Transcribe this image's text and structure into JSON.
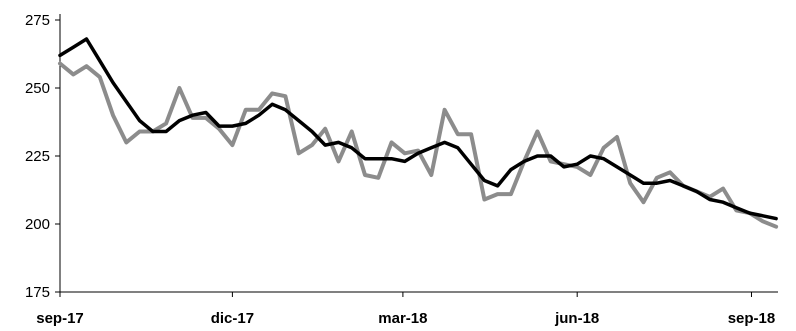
{
  "chart_data": {
    "type": "line",
    "title": "",
    "xlabel": "",
    "ylabel": "",
    "ylim": [
      175,
      275
    ],
    "yticks": [
      175,
      200,
      225,
      250,
      275
    ],
    "xticks": [
      "sep-17",
      "dic-17",
      "mar-18",
      "jun-18",
      "sep-18"
    ],
    "grid": false,
    "legend": "none",
    "x": [
      "2017-09-01",
      "2017-09-08",
      "2017-09-15",
      "2017-09-22",
      "2017-09-29",
      "2017-10-06",
      "2017-10-13",
      "2017-10-20",
      "2017-10-27",
      "2017-11-03",
      "2017-11-10",
      "2017-11-17",
      "2017-11-24",
      "2017-12-01",
      "2017-12-08",
      "2017-12-15",
      "2017-12-22",
      "2017-12-29",
      "2018-01-05",
      "2018-01-12",
      "2018-01-19",
      "2018-01-26",
      "2018-02-02",
      "2018-02-09",
      "2018-02-16",
      "2018-02-23",
      "2018-03-02",
      "2018-03-09",
      "2018-03-16",
      "2018-03-23",
      "2018-03-30",
      "2018-04-06",
      "2018-04-13",
      "2018-04-20",
      "2018-04-27",
      "2018-05-04",
      "2018-05-11",
      "2018-05-18",
      "2018-05-25",
      "2018-06-01",
      "2018-06-08",
      "2018-06-15",
      "2018-06-22",
      "2018-06-29",
      "2018-07-06",
      "2018-07-13",
      "2018-07-20",
      "2018-07-27",
      "2018-08-03",
      "2018-08-10",
      "2018-08-17",
      "2018-08-24",
      "2018-08-31",
      "2018-09-07",
      "2018-09-14"
    ],
    "series": [
      {
        "color": "#8c8c8c",
        "values": [
          259,
          255,
          258,
          254,
          240,
          230,
          234,
          234,
          237,
          250,
          239,
          239,
          235,
          229,
          242,
          242,
          248,
          247,
          226,
          229,
          235,
          223,
          234,
          218,
          217,
          230,
          226,
          227,
          218,
          242,
          233,
          233,
          209,
          211,
          211,
          223,
          234,
          223,
          222,
          221,
          218,
          228,
          232,
          215,
          208,
          217,
          219,
          214,
          212,
          210,
          213,
          205,
          204,
          201,
          199
        ]
      },
      {
        "color": "#000000",
        "values": [
          262,
          265,
          268,
          260,
          252,
          245,
          238,
          234,
          234,
          238,
          240,
          241,
          236,
          236,
          237,
          240,
          244,
          242,
          238,
          234,
          229,
          230,
          228,
          224,
          224,
          224,
          223,
          226,
          228,
          230,
          228,
          222,
          216,
          214,
          220,
          223,
          225,
          225,
          221,
          222,
          225,
          224,
          221,
          218,
          215,
          215,
          216,
          214,
          212,
          209,
          208,
          206,
          204,
          203,
          202
        ]
      }
    ]
  }
}
